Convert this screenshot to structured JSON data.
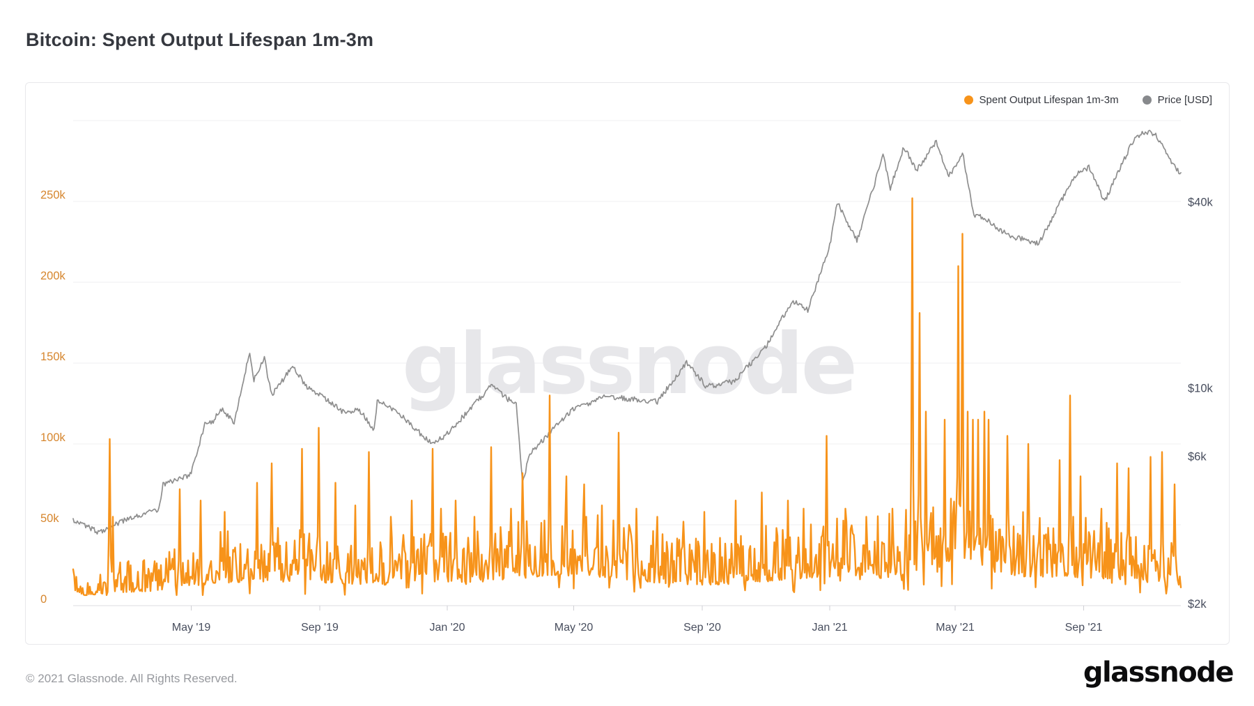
{
  "page": {
    "title": "Bitcoin: Spent Output Lifespan 1m-3m"
  },
  "watermark": "glassnode",
  "legend": [
    {
      "label": "Spent Output Lifespan 1m-3m",
      "color": "#f7931a"
    },
    {
      "label": "Price [USD]",
      "color": "#87898c"
    }
  ],
  "footer": {
    "copyright": "© 2021 Glassnode. All Rights Reserved.",
    "brand": "glassnode"
  },
  "colors": {
    "accent_orange": "#f7931a",
    "price_gray": "#8e8e8e",
    "left_axis_label": "#d6862e",
    "right_axis_label": "#474d5d",
    "x_axis_label": "#474d5d",
    "gridline": "#efeff2",
    "axis_line": "#dcdce0",
    "tick_mark": "#cfcfd4",
    "watermark": "#e7e7ea"
  },
  "chart_data": {
    "type": "line",
    "title": "Bitcoin: Spent Output Lifespan 1m-3m",
    "grid": true,
    "legend_position": "top-right",
    "x_axis": {
      "start_date": "2019-01-08",
      "end_date": "2021-12-03",
      "end_day": 1060,
      "ticks": [
        {
          "label": "May '19",
          "day": 113
        },
        {
          "label": "Sep '19",
          "day": 236
        },
        {
          "label": "Jan '20",
          "day": 358
        },
        {
          "label": "May '20",
          "day": 479
        },
        {
          "label": "Sep '20",
          "day": 602
        },
        {
          "label": "Jan '21",
          "day": 724
        },
        {
          "label": "May '21",
          "day": 844
        },
        {
          "label": "Sep '21",
          "day": 967
        }
      ]
    },
    "left_axis": {
      "scale": "linear",
      "range": [
        0,
        300000
      ],
      "ticks": [
        {
          "label": "0",
          "value": 0
        },
        {
          "label": "50k",
          "value": 50000
        },
        {
          "label": "100k",
          "value": 100000
        },
        {
          "label": "150k",
          "value": 150000
        },
        {
          "label": "200k",
          "value": 200000
        },
        {
          "label": "250k",
          "value": 250000
        }
      ],
      "unlabeled_grid_values": [
        300000
      ]
    },
    "right_axis": {
      "scale": "log",
      "range_usd": [
        2000,
        40000
      ],
      "ticks": [
        {
          "label": "$2k",
          "value": 2000
        },
        {
          "label": "$6k",
          "value": 6000
        },
        {
          "label": "$10k",
          "value": 10000
        },
        {
          "label": "$40k",
          "value": 40000
        }
      ]
    },
    "series": [
      {
        "name": "Spent Output Lifespan 1m-3m",
        "axis": "left",
        "color": "#f7931a",
        "baseline_keypoints": [
          [
            0,
            20000
          ],
          [
            12,
            12000
          ],
          [
            35,
            16000
          ],
          [
            75,
            18000
          ],
          [
            110,
            24000
          ],
          [
            140,
            28000
          ],
          [
            190,
            30000
          ],
          [
            240,
            28000
          ],
          [
            290,
            25000
          ],
          [
            340,
            30000
          ],
          [
            390,
            28000
          ],
          [
            425,
            33000
          ],
          [
            460,
            38000
          ],
          [
            510,
            35000
          ],
          [
            560,
            28000
          ],
          [
            610,
            25000
          ],
          [
            660,
            30000
          ],
          [
            710,
            35000
          ],
          [
            760,
            32000
          ],
          [
            810,
            40000
          ],
          [
            860,
            45000
          ],
          [
            910,
            36000
          ],
          [
            960,
            35000
          ],
          [
            1010,
            32000
          ],
          [
            1060,
            22000
          ]
        ],
        "spikes": [
          [
            35,
            103000
          ],
          [
            38,
            55000
          ],
          [
            102,
            72000
          ],
          [
            122,
            65000
          ],
          [
            145,
            58000
          ],
          [
            176,
            76000
          ],
          [
            190,
            88000
          ],
          [
            219,
            97000
          ],
          [
            235,
            110000
          ],
          [
            251,
            76000
          ],
          [
            270,
            62000
          ],
          [
            283,
            95000
          ],
          [
            304,
            55000
          ],
          [
            324,
            65000
          ],
          [
            344,
            97000
          ],
          [
            352,
            60000
          ],
          [
            366,
            65000
          ],
          [
            384,
            55000
          ],
          [
            400,
            98000
          ],
          [
            419,
            60000
          ],
          [
            430,
            82000
          ],
          [
            456,
            130000
          ],
          [
            472,
            80000
          ],
          [
            489,
            75000
          ],
          [
            506,
            62000
          ],
          [
            522,
            107000
          ],
          [
            539,
            60000
          ],
          [
            559,
            55000
          ],
          [
            584,
            52000
          ],
          [
            604,
            58000
          ],
          [
            634,
            65000
          ],
          [
            659,
            70000
          ],
          [
            684,
            65000
          ],
          [
            699,
            60000
          ],
          [
            721,
            105000
          ],
          [
            739,
            60000
          ],
          [
            759,
            55000
          ],
          [
            784,
            60000
          ],
          [
            803,
            252000
          ],
          [
            810,
            181000
          ],
          [
            816,
            120000
          ],
          [
            834,
            115000
          ],
          [
            847,
            210000
          ],
          [
            851,
            230000
          ],
          [
            856,
            120000
          ],
          [
            861,
            115000
          ],
          [
            866,
            115000
          ],
          [
            872,
            120000
          ],
          [
            876,
            115000
          ],
          [
            894,
            105000
          ],
          [
            914,
            100000
          ],
          [
            944,
            90000
          ],
          [
            954,
            130000
          ],
          [
            964,
            80000
          ],
          [
            984,
            60000
          ],
          [
            999,
            88000
          ],
          [
            1010,
            85000
          ],
          [
            1031,
            92000
          ],
          [
            1042,
            95000
          ],
          [
            1054,
            75000
          ]
        ]
      },
      {
        "name": "Price [USD]",
        "axis": "right",
        "color": "#8e8e8e",
        "keypoints_usd": [
          [
            0,
            3800
          ],
          [
            24,
            3460
          ],
          [
            53,
            3820
          ],
          [
            82,
            4100
          ],
          [
            86,
            4950
          ],
          [
            112,
            5300
          ],
          [
            127,
            7900
          ],
          [
            134,
            7900
          ],
          [
            141,
            8700
          ],
          [
            154,
            7900
          ],
          [
            169,
            13200
          ],
          [
            173,
            10800
          ],
          [
            183,
            12600
          ],
          [
            190,
            9600
          ],
          [
            210,
            11900
          ],
          [
            225,
            10100
          ],
          [
            236,
            9700
          ],
          [
            260,
            8400
          ],
          [
            274,
            8600
          ],
          [
            288,
            7450
          ],
          [
            291,
            9250
          ],
          [
            311,
            8450
          ],
          [
            326,
            7550
          ],
          [
            344,
            6650
          ],
          [
            358,
            7200
          ],
          [
            400,
            10300
          ],
          [
            424,
            8900
          ],
          [
            430,
            5000
          ],
          [
            437,
            6200
          ],
          [
            478,
            8650
          ],
          [
            510,
            9500
          ],
          [
            559,
            9160
          ],
          [
            587,
            12250
          ],
          [
            606,
            10250
          ],
          [
            632,
            10620
          ],
          [
            663,
            13800
          ],
          [
            687,
            19150
          ],
          [
            694,
            19200
          ],
          [
            703,
            18050
          ],
          [
            724,
            29300
          ],
          [
            731,
            40600
          ],
          [
            750,
            30400
          ],
          [
            775,
            57400
          ],
          [
            782,
            45200
          ],
          [
            795,
            61200
          ],
          [
            807,
            51400
          ],
          [
            826,
            63500
          ],
          [
            838,
            49100
          ],
          [
            851,
            58700
          ],
          [
            862,
            37000
          ],
          [
            874,
            35600
          ],
          [
            895,
            31600
          ],
          [
            924,
            29800
          ],
          [
            958,
            49300
          ],
          [
            972,
            52650
          ],
          [
            987,
            40700
          ],
          [
            1016,
            66000
          ],
          [
            1028,
            68500
          ],
          [
            1035,
            67500
          ],
          [
            1053,
            53700
          ],
          [
            1060,
            49800
          ]
        ]
      }
    ]
  }
}
